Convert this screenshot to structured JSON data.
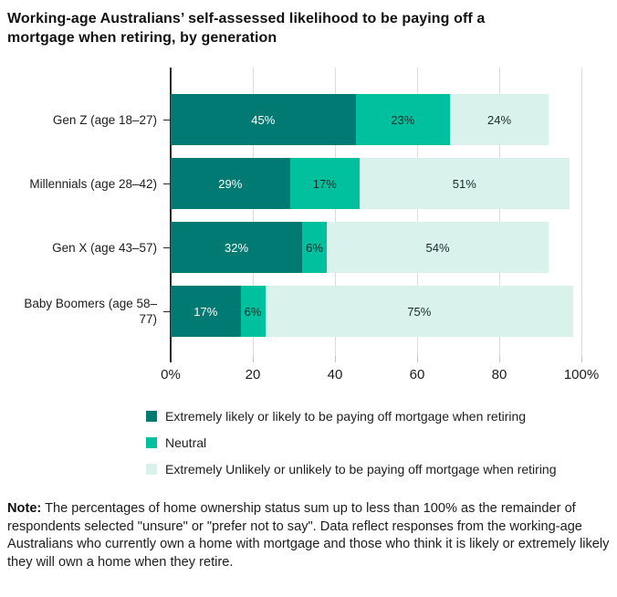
{
  "title": "Working-age Australians’ self-assessed likelihood to be paying off a mortgage when retiring, by generation",
  "chart_data": {
    "type": "bar",
    "orientation": "horizontal",
    "stacked": true,
    "title": "Working-age Australians’ self-assessed likelihood to be paying off a mortgage when retiring, by generation",
    "categories": [
      "Gen Z (age 18–27)",
      "Millennials (age 28–42)",
      "Gen X (age 43–57)",
      "Baby Boomers (age 58–77)"
    ],
    "series": [
      {
        "name": "Extremely likely or likely to be paying off mortgage when retiring",
        "color": "#007A72",
        "label_color": "#ffffff",
        "values": [
          45,
          29,
          32,
          17
        ]
      },
      {
        "name": "Neutral",
        "color": "#00C09D",
        "label_color": "#172b2b",
        "values": [
          23,
          17,
          6,
          6
        ]
      },
      {
        "name": "Extremely Unlikely or unlikely to be paying off mortgage when retiring",
        "color": "#D9F2EB",
        "label_color": "#172b2b",
        "values": [
          24,
          51,
          54,
          75
        ]
      }
    ],
    "xlim": [
      0,
      100
    ],
    "x_ticks": [
      0,
      20,
      40,
      60,
      80,
      100
    ],
    "x_tick_labels": [
      "0%",
      "20",
      "40",
      "60",
      "80",
      "100%"
    ],
    "grid": "vertical-gridlines-on",
    "legend_position": "bottom",
    "value_suffix": "%"
  },
  "note": {
    "label": "Note:",
    "text": "The percentages of home ownership status sum up to less than 100% as the remainder of respondents selected \"unsure\" or \"prefer not to say\". Data reflect responses from the working-age Australians who currently own a home with mortgage and those who think it is likely or extremely likely they will own a home when they retire."
  }
}
